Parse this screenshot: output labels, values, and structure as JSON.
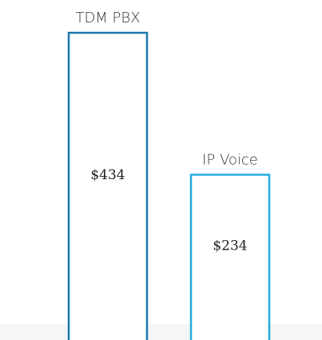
{
  "chart_data": {
    "type": "bar",
    "categories": [
      "TDM PBX",
      "IP Voice"
    ],
    "values": [
      434,
      234
    ],
    "value_labels": [
      "$434",
      "$234"
    ],
    "colors": [
      "#1b78ad",
      "#22ade0"
    ]
  }
}
